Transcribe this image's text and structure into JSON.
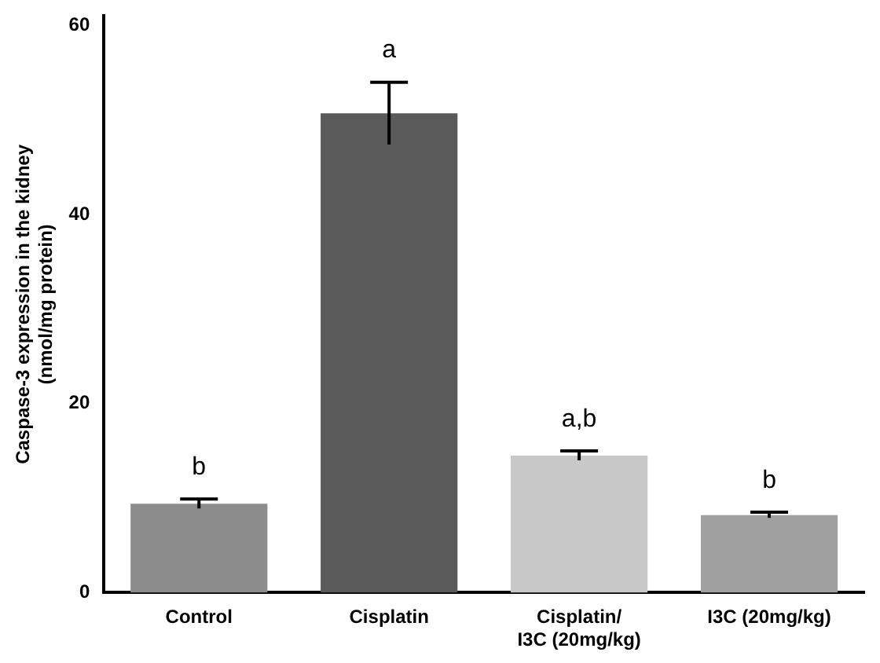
{
  "chart_data": {
    "type": "bar",
    "ylabel": "Caspase-3 expression in the kidney\n(nmol/mg protein)",
    "categories": [
      "Control",
      "Cisplatin",
      "Cisplatin/\nI3C (20mg/kg)",
      "I3C (20mg/kg)"
    ],
    "values": [
      9.4,
      50.7,
      14.5,
      8.2
    ],
    "errors": [
      0.5,
      3.3,
      0.5,
      0.3
    ],
    "colors": [
      "#8c8c8c",
      "#5a5a5a",
      "#c8c8c8",
      "#a0a0a0"
    ],
    "ylim": [
      0,
      61
    ],
    "yticks": [
      0,
      20,
      40,
      60
    ],
    "grid": false,
    "legend": false,
    "annotations": [
      "b",
      "a",
      "a,b",
      "b"
    ]
  }
}
